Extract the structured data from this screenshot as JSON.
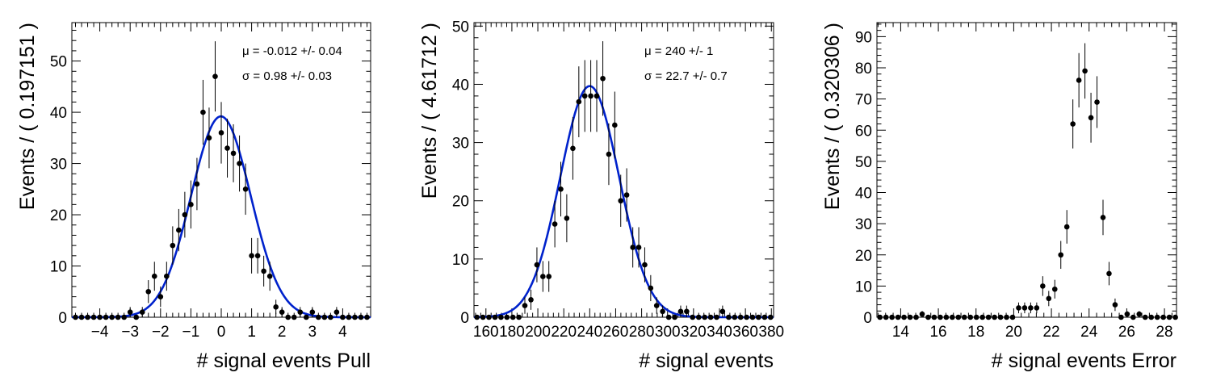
{
  "chart_data": [
    {
      "type": "scatter",
      "title": "",
      "xlabel": "# signal events Pull",
      "ylabel": "Events / ( 0.197151 )",
      "xlim": [
        -4.92,
        4.92
      ],
      "ylim": [
        0,
        57.5
      ],
      "x_ticks": [
        -4,
        -3,
        -2,
        -1,
        0,
        1,
        2,
        3,
        4
      ],
      "y_ticks": [
        0,
        10,
        20,
        30,
        40,
        50
      ],
      "fit_text": [
        "μ = -0.012 +/- 0.04",
        "σ =  0.98 +/- 0.03"
      ],
      "fit": {
        "mean": -0.012,
        "sigma": 0.98,
        "peak": 39.2
      },
      "points": {
        "x": [
          -4.8,
          -4.6,
          -4.4,
          -4.2,
          -4.0,
          -3.8,
          -3.6,
          -3.4,
          -3.2,
          -3.0,
          -2.8,
          -2.6,
          -2.4,
          -2.2,
          -2.0,
          -1.8,
          -1.6,
          -1.4,
          -1.2,
          -1.0,
          -0.8,
          -0.6,
          -0.4,
          -0.2,
          0.0,
          0.2,
          0.4,
          0.6,
          0.8,
          1.0,
          1.2,
          1.4,
          1.6,
          1.8,
          2.0,
          2.2,
          2.4,
          2.6,
          2.8,
          3.0,
          3.2,
          3.4,
          3.6,
          3.8,
          4.0,
          4.2,
          4.4,
          4.6,
          4.8
        ],
        "y": [
          0,
          0,
          0,
          0,
          0,
          0,
          0,
          0,
          0,
          1,
          0,
          1,
          5,
          8,
          4,
          8,
          14,
          17,
          20,
          22,
          26,
          40,
          35,
          47,
          36,
          33,
          32,
          30,
          25,
          12,
          12,
          9,
          8,
          2,
          1,
          0,
          0,
          1,
          0,
          1,
          0,
          0,
          0,
          1,
          0,
          0,
          0,
          0,
          0
        ]
      }
    },
    {
      "type": "scatter",
      "title": "",
      "xlabel": "# signal events",
      "ylabel": "Events / ( 4.61712 )",
      "xlim": [
        150.8,
        381.7
      ],
      "ylim": [
        0,
        50.6
      ],
      "x_ticks": [
        160,
        180,
        200,
        220,
        240,
        260,
        280,
        300,
        320,
        340,
        360,
        380
      ],
      "y_ticks": [
        0,
        10,
        20,
        30,
        40,
        50
      ],
      "fit_text": [
        "μ =  240 +/- 1",
        "σ =  22.7 +/- 0.7"
      ],
      "fit": {
        "mean": 240,
        "sigma": 22.7,
        "peak": 39.7
      },
      "points": {
        "x": [
          153.1,
          157.7,
          162.3,
          167.0,
          171.6,
          176.2,
          180.8,
          185.4,
          190.0,
          194.7,
          199.3,
          203.9,
          208.5,
          213.1,
          217.7,
          222.3,
          227.0,
          231.6,
          236.2,
          240.8,
          245.4,
          250.1,
          254.7,
          259.3,
          263.9,
          268.5,
          273.2,
          277.8,
          282.4,
          287.0,
          291.6,
          296.2,
          300.9,
          305.5,
          310.1,
          314.7,
          319.3,
          324.0,
          328.6,
          333.2,
          337.8,
          342.4,
          347.1,
          351.7,
          356.3,
          360.9,
          365.5,
          370.1,
          374.8,
          379.4
        ],
        "y": [
          0,
          0,
          0,
          0,
          0,
          0,
          0,
          0,
          2,
          3,
          9,
          7,
          7,
          16,
          22,
          17,
          29,
          37,
          38,
          38,
          38,
          41,
          28,
          33,
          20,
          21,
          12,
          12,
          9,
          5,
          2,
          1,
          0,
          0,
          1,
          1,
          0,
          0,
          0,
          0,
          0,
          1,
          0,
          0,
          0,
          0,
          0,
          0,
          0,
          0
        ]
      }
    },
    {
      "type": "scatter",
      "title": "",
      "xlabel": "# signal events Error",
      "ylabel": "Events / ( 0.320306 )",
      "xlim": [
        12.74,
        28.64
      ],
      "ylim": [
        0,
        94.5
      ],
      "x_ticks": [
        14,
        16,
        18,
        20,
        22,
        24,
        26,
        28
      ],
      "y_ticks": [
        0,
        10,
        20,
        30,
        40,
        50,
        60,
        70,
        80,
        90
      ],
      "points": {
        "x": [
          12.9,
          13.22,
          13.54,
          13.86,
          14.18,
          14.5,
          14.82,
          15.14,
          15.46,
          15.78,
          16.1,
          16.42,
          16.74,
          17.06,
          17.38,
          17.7,
          18.02,
          18.34,
          18.66,
          18.98,
          19.3,
          19.62,
          19.94,
          20.26,
          20.58,
          20.9,
          21.22,
          21.54,
          21.86,
          22.18,
          22.5,
          22.82,
          23.14,
          23.46,
          23.78,
          24.1,
          24.42,
          24.74,
          25.06,
          25.38,
          25.7,
          26.02,
          26.34,
          26.66,
          26.98,
          27.3,
          27.62,
          27.94,
          28.26,
          28.58
        ],
        "y": [
          0,
          0,
          0,
          0,
          0,
          0,
          0,
          1,
          0,
          0,
          0,
          0,
          0,
          0,
          0,
          0,
          0,
          0,
          0,
          0,
          0,
          0,
          0,
          3,
          3,
          3,
          3,
          10,
          6,
          9,
          20,
          29,
          62,
          76,
          79,
          64,
          69,
          32,
          14,
          4,
          0,
          1,
          0,
          1,
          0,
          0,
          0,
          0,
          0,
          0
        ]
      }
    }
  ]
}
